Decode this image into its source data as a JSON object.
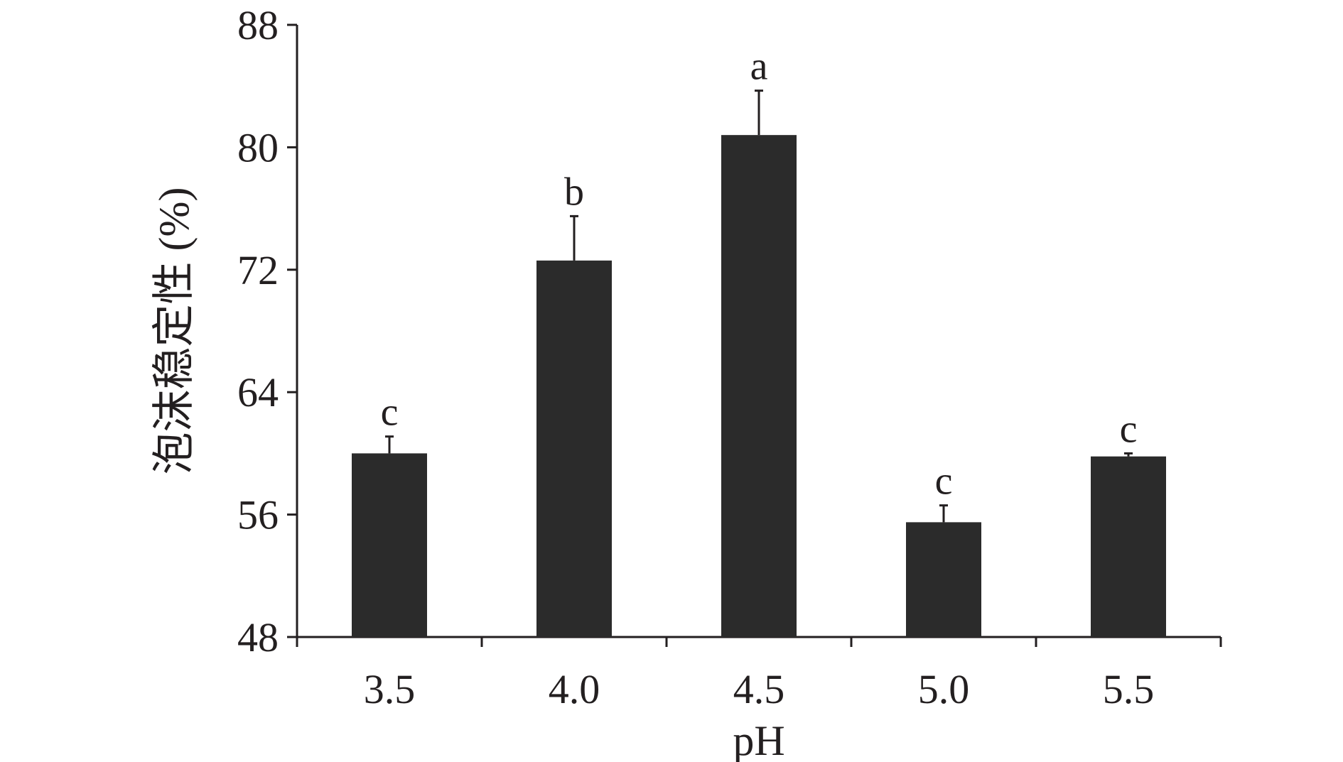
{
  "chart_data": {
    "type": "bar",
    "title": "",
    "xlabel": "pH",
    "ylabel": "泡沫稳定性 (%)",
    "categories": [
      "3.5",
      "4.0",
      "4.5",
      "5.0",
      "5.5"
    ],
    "values": [
      60.0,
      72.6,
      80.8,
      55.5,
      59.8
    ],
    "errors": [
      1.1,
      2.9,
      2.9,
      1.1,
      0.2
    ],
    "significance_letters": [
      "c",
      "b",
      "a",
      "c",
      "c"
    ],
    "ylim": [
      48,
      88
    ],
    "yticks": [
      "48",
      "56",
      "64",
      "72",
      "80",
      "88"
    ],
    "grid": false,
    "legend": "none",
    "colors": {
      "bar": "#2b2b2b",
      "axis": "#231f20"
    }
  }
}
